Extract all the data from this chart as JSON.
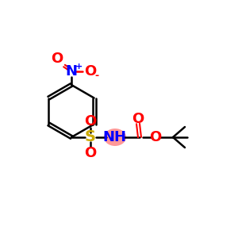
{
  "title": "",
  "background_color": "#ffffff",
  "atom_colors": {
    "C": "#000000",
    "N": "#0000ff",
    "O": "#ff0000",
    "S": "#ccaa00",
    "H": "#000000"
  },
  "nh_highlight_color": "#ff9999",
  "bond_color": "#000000",
  "bond_width": 1.8,
  "font_size_atom": 13,
  "font_size_small": 10
}
